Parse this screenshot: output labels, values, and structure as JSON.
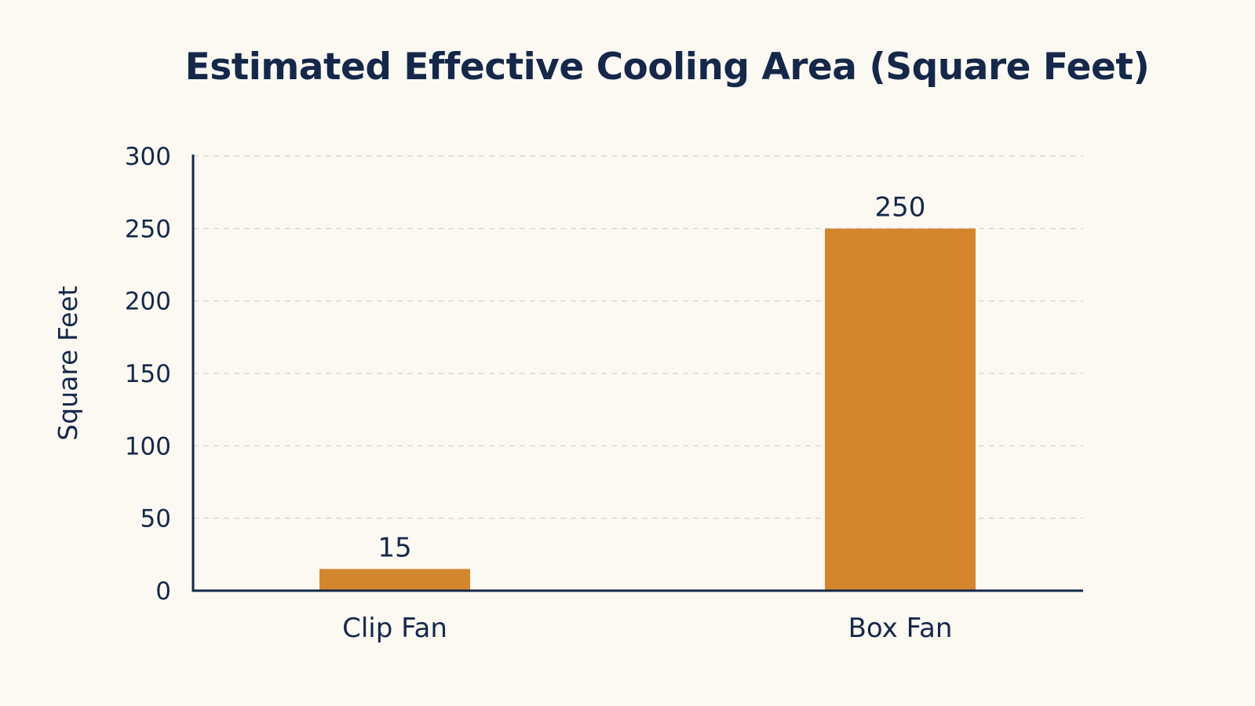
{
  "chart_data": {
    "type": "bar",
    "title": "Estimated Effective Cooling Area (Square Feet)",
    "xlabel": "",
    "ylabel": "Square Feet",
    "categories": [
      "Clip Fan",
      "Box Fan"
    ],
    "values": [
      15,
      250
    ],
    "data_labels": [
      "15",
      "250"
    ],
    "ylim": [
      0,
      300
    ],
    "yticks": [
      0,
      50,
      100,
      150,
      200,
      250,
      300
    ],
    "grid": true,
    "legend": "none",
    "bar_color": "#d4862f",
    "text_color": "#15284a",
    "background": "#fcf9f3"
  }
}
